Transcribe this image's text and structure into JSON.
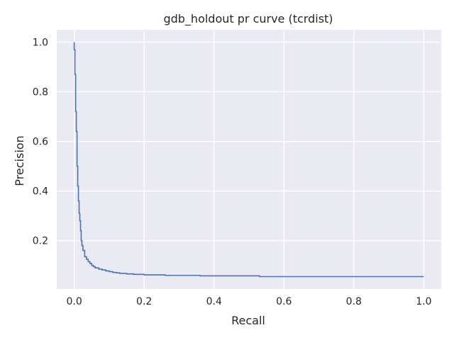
{
  "chart_data": {
    "type": "line",
    "title": "gdb_holdout pr curve (tcrdist)",
    "xlabel": "Recall",
    "ylabel": "Precision",
    "xlim": [
      -0.05,
      1.05
    ],
    "ylim": [
      0.005,
      1.05
    ],
    "xticks": [
      0.0,
      0.2,
      0.4,
      0.6,
      0.8,
      1.0
    ],
    "xtick_labels": [
      "0.0",
      "0.2",
      "0.4",
      "0.6",
      "0.8",
      "1.0"
    ],
    "yticks": [
      0.2,
      0.4,
      0.6,
      0.8,
      1.0
    ],
    "ytick_labels": [
      "0.2",
      "0.4",
      "0.6",
      "0.8",
      "1.0"
    ],
    "grid": true,
    "background": "#eaeaf2",
    "grid_color": "#ffffff",
    "line_color": "#4c72b0",
    "drawstyle": "steps-post",
    "series": [
      {
        "name": "",
        "x": [
          0.0,
          0.0,
          0.0,
          0.002,
          0.002,
          0.004,
          0.004,
          0.006,
          0.006,
          0.008,
          0.008,
          0.01,
          0.01,
          0.012,
          0.012,
          0.014,
          0.014,
          0.016,
          0.016,
          0.018,
          0.018,
          0.02,
          0.02,
          0.022,
          0.022,
          0.025,
          0.025,
          0.03,
          0.03,
          0.035,
          0.035,
          0.04,
          0.04,
          0.045,
          0.045,
          0.05,
          0.05,
          0.055,
          0.055,
          0.06,
          0.06,
          0.07,
          0.07,
          0.08,
          0.08,
          0.09,
          0.09,
          0.1,
          0.1,
          0.11,
          0.11,
          0.12,
          0.12,
          0.13,
          0.13,
          0.15,
          0.15,
          0.17,
          0.17,
          0.2,
          0.2,
          0.26,
          0.26,
          0.36,
          0.36,
          0.53,
          0.53,
          1.0
        ],
        "y": [
          1.0,
          0.97,
          0.97,
          0.97,
          0.87,
          0.87,
          0.72,
          0.72,
          0.64,
          0.64,
          0.5,
          0.5,
          0.42,
          0.42,
          0.36,
          0.36,
          0.31,
          0.31,
          0.28,
          0.28,
          0.24,
          0.24,
          0.2,
          0.2,
          0.18,
          0.18,
          0.16,
          0.16,
          0.135,
          0.135,
          0.125,
          0.125,
          0.115,
          0.115,
          0.108,
          0.108,
          0.1,
          0.1,
          0.095,
          0.095,
          0.09,
          0.09,
          0.085,
          0.085,
          0.082,
          0.082,
          0.078,
          0.078,
          0.075,
          0.075,
          0.072,
          0.072,
          0.07,
          0.07,
          0.068,
          0.068,
          0.066,
          0.066,
          0.064,
          0.064,
          0.062,
          0.062,
          0.06,
          0.06,
          0.058,
          0.058,
          0.055,
          0.055
        ]
      }
    ]
  }
}
